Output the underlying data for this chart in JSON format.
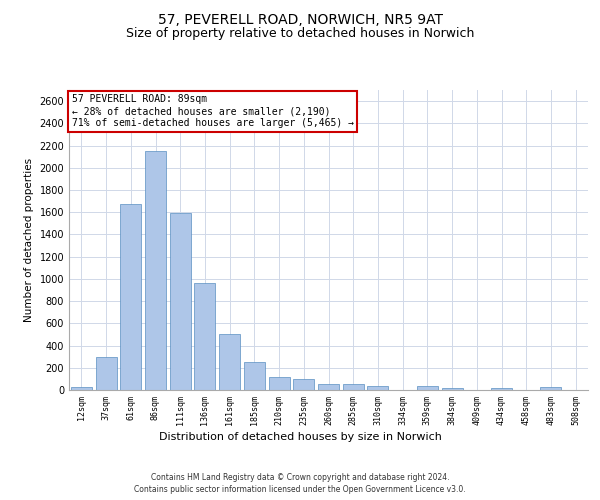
{
  "title1": "57, PEVERELL ROAD, NORWICH, NR5 9AT",
  "title2": "Size of property relative to detached houses in Norwich",
  "xlabel": "Distribution of detached houses by size in Norwich",
  "ylabel": "Number of detached properties",
  "annotation_line1": "57 PEVERELL ROAD: 89sqm",
  "annotation_line2": "← 28% of detached houses are smaller (2,190)",
  "annotation_line3": "71% of semi-detached houses are larger (5,465) →",
  "footnote1": "Contains HM Land Registry data © Crown copyright and database right 2024.",
  "footnote2": "Contains public sector information licensed under the Open Government Licence v3.0.",
  "bar_color": "#aec6e8",
  "bar_edge_color": "#5a8fc2",
  "annotation_box_color": "#cc0000",
  "background_color": "#ffffff",
  "grid_color": "#d0d8e8",
  "categories": [
    "12sqm",
    "37sqm",
    "61sqm",
    "86sqm",
    "111sqm",
    "136sqm",
    "161sqm",
    "185sqm",
    "210sqm",
    "235sqm",
    "260sqm",
    "285sqm",
    "310sqm",
    "334sqm",
    "359sqm",
    "384sqm",
    "409sqm",
    "434sqm",
    "458sqm",
    "483sqm",
    "508sqm"
  ],
  "values": [
    25,
    300,
    1670,
    2150,
    1590,
    960,
    500,
    250,
    120,
    100,
    50,
    50,
    35,
    0,
    35,
    20,
    0,
    20,
    0,
    25,
    0
  ],
  "ylim": [
    0,
    2700
  ],
  "yticks": [
    0,
    200,
    400,
    600,
    800,
    1000,
    1200,
    1400,
    1600,
    1800,
    2000,
    2200,
    2400,
    2600
  ],
  "title1_fontsize": 10,
  "title2_fontsize": 9,
  "xlabel_fontsize": 8,
  "ylabel_fontsize": 7.5,
  "tick_fontsize": 7,
  "xtick_fontsize": 6,
  "footnote_fontsize": 5.5,
  "annotation_fontsize": 7
}
